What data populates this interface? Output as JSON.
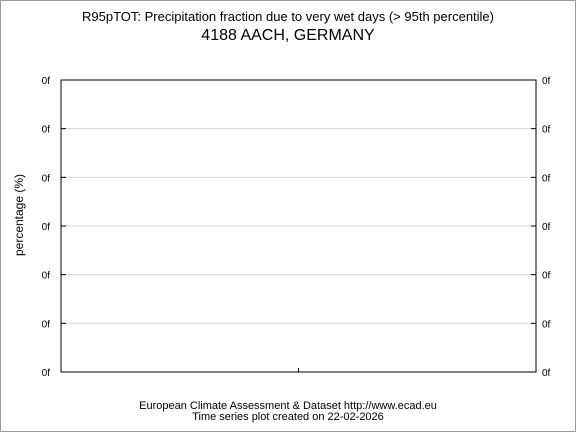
{
  "chart_data": {
    "type": "line",
    "title": "R95pTOT: Precipitation fraction due to very wet days (> 95th percentile)",
    "subtitle": "4188 AACH, GERMANY",
    "xlabel": "",
    "ylabel": "percentage (%)",
    "y_tick_labels": [
      "0f",
      "0f",
      "0f",
      "0f",
      "0f",
      "0f",
      "0f"
    ],
    "x_tick_labels": [],
    "series": [],
    "grid": true,
    "legend": "none"
  },
  "footer": {
    "line1": "European Climate Assessment & Dataset  http://www.ecad.eu",
    "line2": "Time series plot created on 22-02-2026"
  }
}
